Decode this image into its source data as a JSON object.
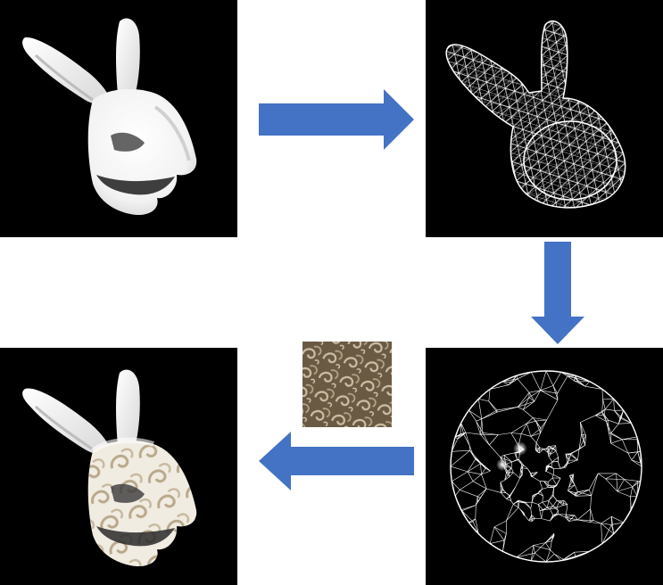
{
  "diagram": {
    "steps": [
      {
        "id": "input-mesh-render",
        "icon": "bunny-shaded-icon"
      },
      {
        "id": "wireframe-mesh",
        "icon": "bunny-wireframe-icon"
      },
      {
        "id": "uv-parameterization-disk",
        "icon": "disk-triangulation-icon"
      },
      {
        "id": "textured-result",
        "icon": "bunny-textured-icon"
      }
    ],
    "texture": {
      "icon": "swirl-texture-icon"
    },
    "colors": {
      "arrow": "#4472c4",
      "panel_background": "#000000",
      "page_background": "#ffffff",
      "wire": "#ffffff",
      "texture_base": "#6b5a43",
      "texture_swirl": "#c9bba3"
    }
  }
}
